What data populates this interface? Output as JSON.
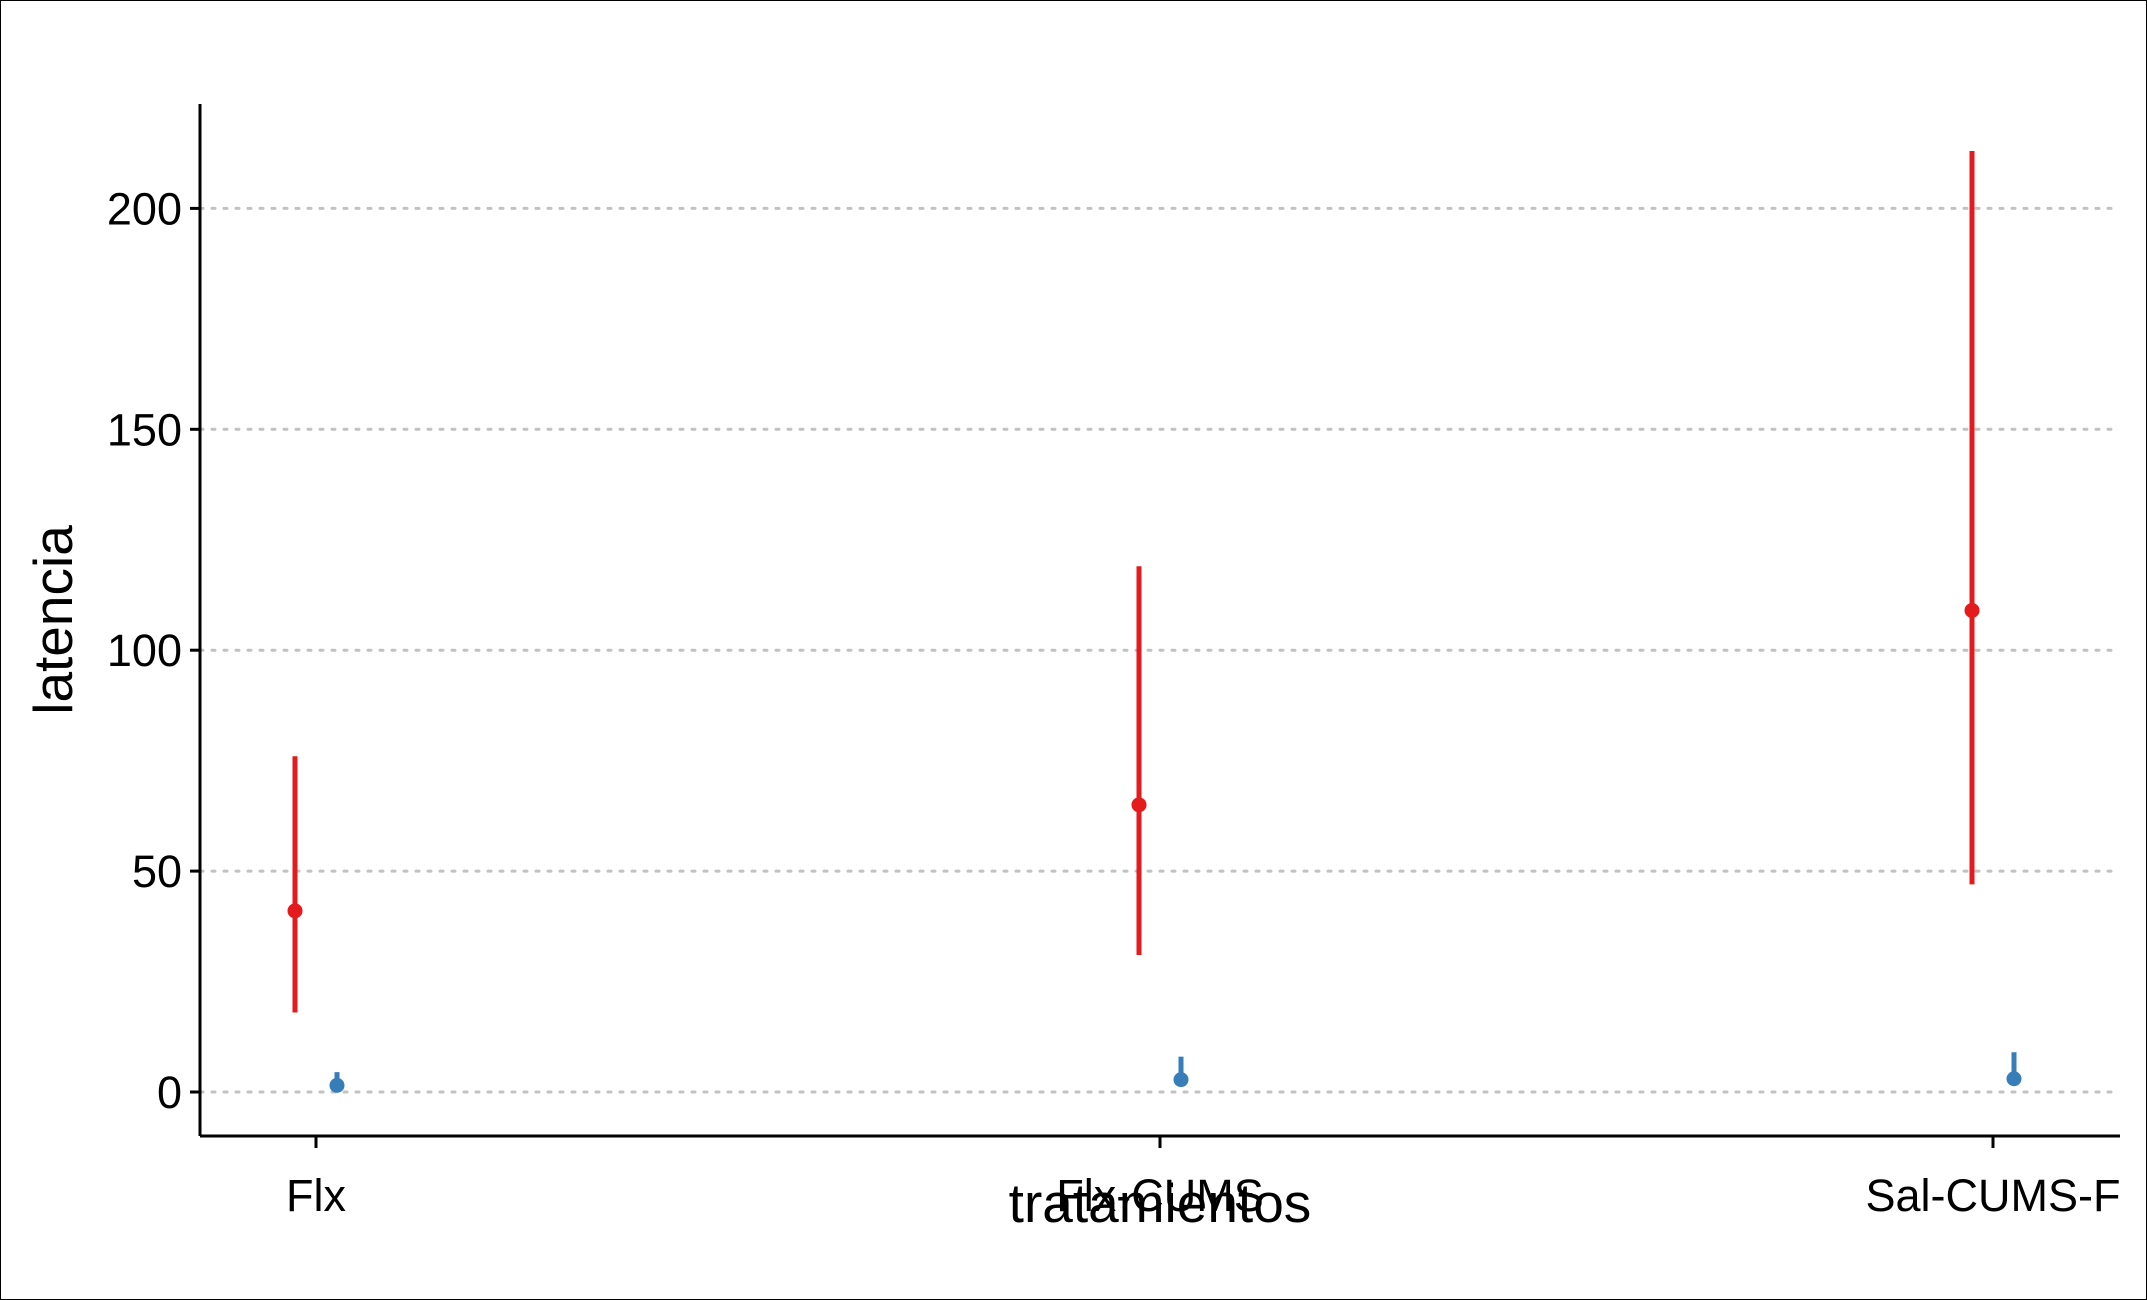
{
  "chart_data": {
    "type": "scatter",
    "title": "",
    "xlabel": "tratamientos",
    "ylabel": "latencia",
    "categories": [
      "Flx",
      "Flx-CUMS",
      "Sal-CUMS-F"
    ],
    "ylim": [
      -10,
      222
    ],
    "yticks": [
      0,
      50,
      100,
      150,
      200
    ],
    "grid": "horizontal dotted",
    "legend": "none",
    "series": [
      {
        "color": "#e41a1c",
        "points": [
          {
            "category": "Flx",
            "y": 41,
            "lower": 18,
            "upper": 76
          },
          {
            "category": "Flx-CUMS",
            "y": 65,
            "lower": 31,
            "upper": 119
          },
          {
            "category": "Sal-CUMS-F",
            "y": 109,
            "lower": 47,
            "upper": 213
          }
        ]
      },
      {
        "color": "#377eb8",
        "points": [
          {
            "category": "Flx",
            "y": 1.5,
            "lower": 1.5,
            "upper": 4.5
          },
          {
            "category": "Flx-CUMS",
            "y": 2.8,
            "lower": 2.8,
            "upper": 8
          },
          {
            "category": "Sal-CUMS-F",
            "y": 3,
            "lower": 3,
            "upper": 9
          }
        ]
      }
    ]
  }
}
